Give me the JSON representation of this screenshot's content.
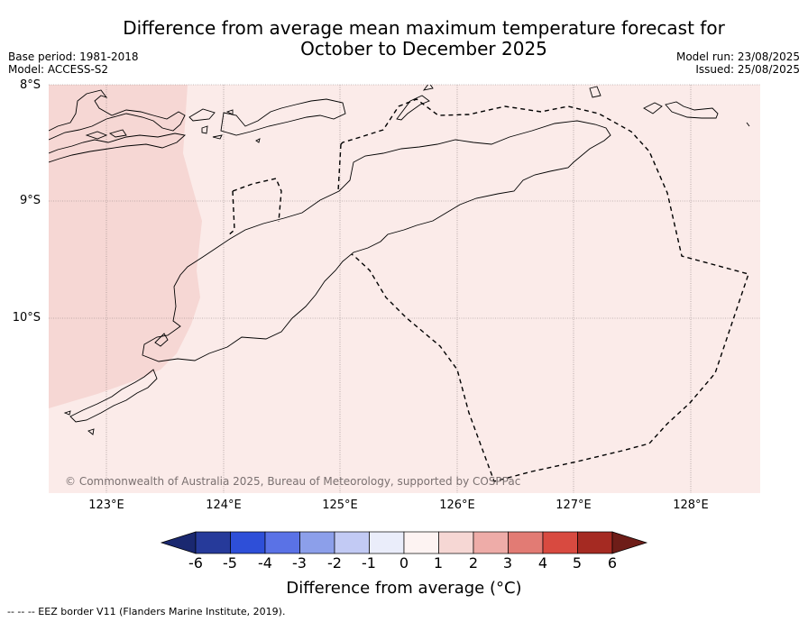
{
  "title": {
    "line1": "Difference from average mean maximum temperature forecast for",
    "line2": "October to December 2025"
  },
  "meta": {
    "base_period": "Base period: 1981-2018",
    "model": "Model: ACCESS-S2",
    "model_run": "Model run: 23/08/2025",
    "issued": "Issued: 25/08/2025"
  },
  "axes": {
    "lat_labels": [
      "8°S",
      "9°S",
      "10°S"
    ],
    "lon_labels": [
      "123°E",
      "124°E",
      "125°E",
      "126°E",
      "127°E",
      "128°E"
    ]
  },
  "map": {
    "zones": [
      {
        "range": "1 to 2 °C",
        "color": "#f6d7d4"
      },
      {
        "range": "0 to 1 °C",
        "color": "#fbebe9"
      }
    ],
    "copyright": "© Commonwealth of Australia 2025, Bureau of Meteorology, supported by COSPPac"
  },
  "colorbar": {
    "ticks": [
      "-6",
      "-5",
      "-4",
      "-3",
      "-2",
      "-1",
      "0",
      "1",
      "2",
      "3",
      "4",
      "5",
      "6"
    ],
    "colors": [
      "#263a9a",
      "#2e4fd8",
      "#5a72e6",
      "#8c9fea",
      "#c2caf4",
      "#eaedfa",
      "#fdf3f2",
      "#f6d7d4",
      "#eeaca8",
      "#e27b74",
      "#d84a40",
      "#a52a22"
    ],
    "low_extend_color": "#1a2870",
    "high_extend_color": "#6e1d18",
    "label": "Difference from average (°C)"
  },
  "footnote": "--  --  -- EEZ border V11 (Flanders Marine Institute, 2019)."
}
